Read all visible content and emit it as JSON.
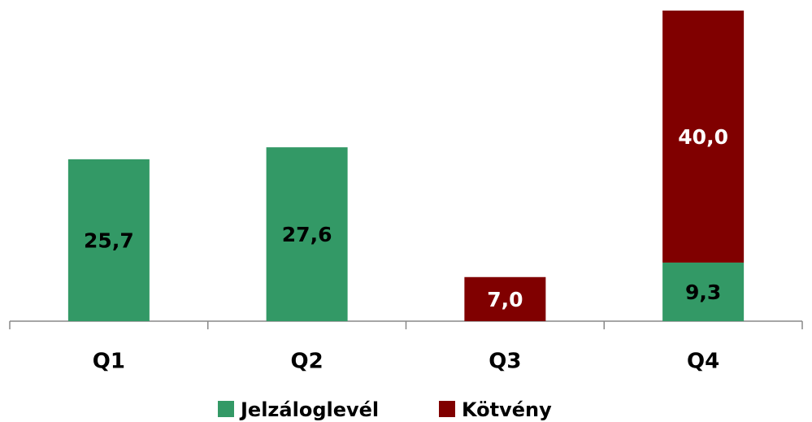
{
  "chart_data": {
    "type": "stacked_bar",
    "categories": [
      "Q1",
      "Q2",
      "Q3",
      "Q4"
    ],
    "series": [
      {
        "name": "Jelzáloglevél",
        "color": "#339966",
        "label_color": "#000000",
        "values": [
          25.7,
          27.6,
          null,
          9.3
        ],
        "value_labels": [
          "25,7",
          "27,6",
          null,
          "9,3"
        ]
      },
      {
        "name": "Kötvény",
        "color": "#800000",
        "label_color": "#ffffff",
        "values": [
          null,
          null,
          7.0,
          40.0
        ],
        "value_labels": [
          null,
          null,
          "7,0",
          "40,0"
        ]
      }
    ],
    "legend": "bottom"
  }
}
